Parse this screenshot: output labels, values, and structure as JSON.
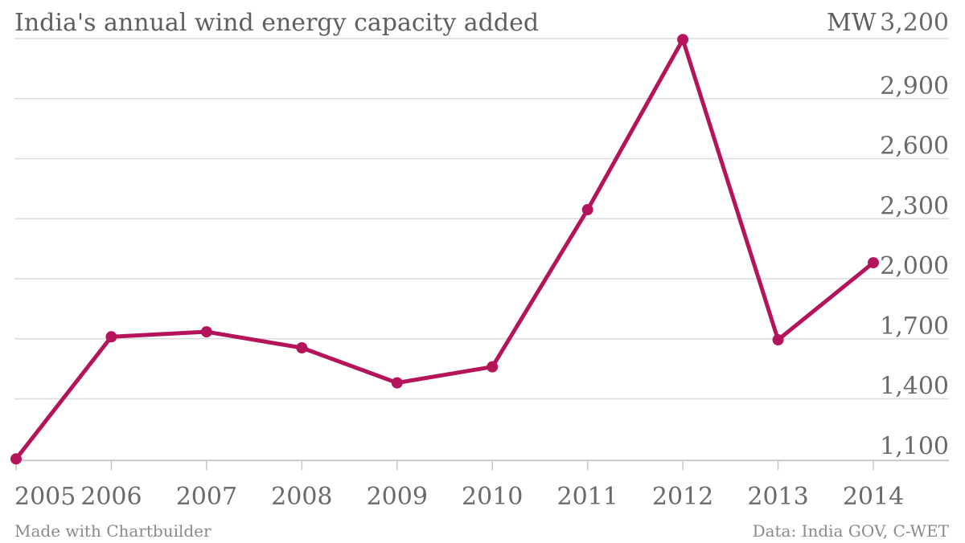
{
  "chart_data": {
    "type": "line",
    "title": "India's annual wind energy capacity added",
    "unit_label": "MW",
    "xlabel": "",
    "ylabel": "",
    "x": [
      "2005",
      "2006",
      "2007",
      "2008",
      "2009",
      "2010",
      "2011",
      "2012",
      "2013",
      "2014"
    ],
    "series": [
      {
        "values": [
          1100,
          1710,
          1735,
          1655,
          1480,
          1560,
          2345,
          3195,
          1695,
          2080
        ]
      }
    ],
    "ylim": [
      1025,
      3200
    ],
    "y_ticks": [
      1100,
      1400,
      1700,
      2000,
      2300,
      2600,
      2900,
      3200
    ],
    "y_tick_labels": [
      "1,100",
      "1,400",
      "1,700",
      "2,000",
      "2,300",
      "2,600",
      "2,900",
      "3,200"
    ],
    "grid": true,
    "legend": "none",
    "line_color": "#b5135a",
    "footer_left": "Made with Chartbuilder",
    "footer_right": "Data: India GOV, C-WET"
  }
}
